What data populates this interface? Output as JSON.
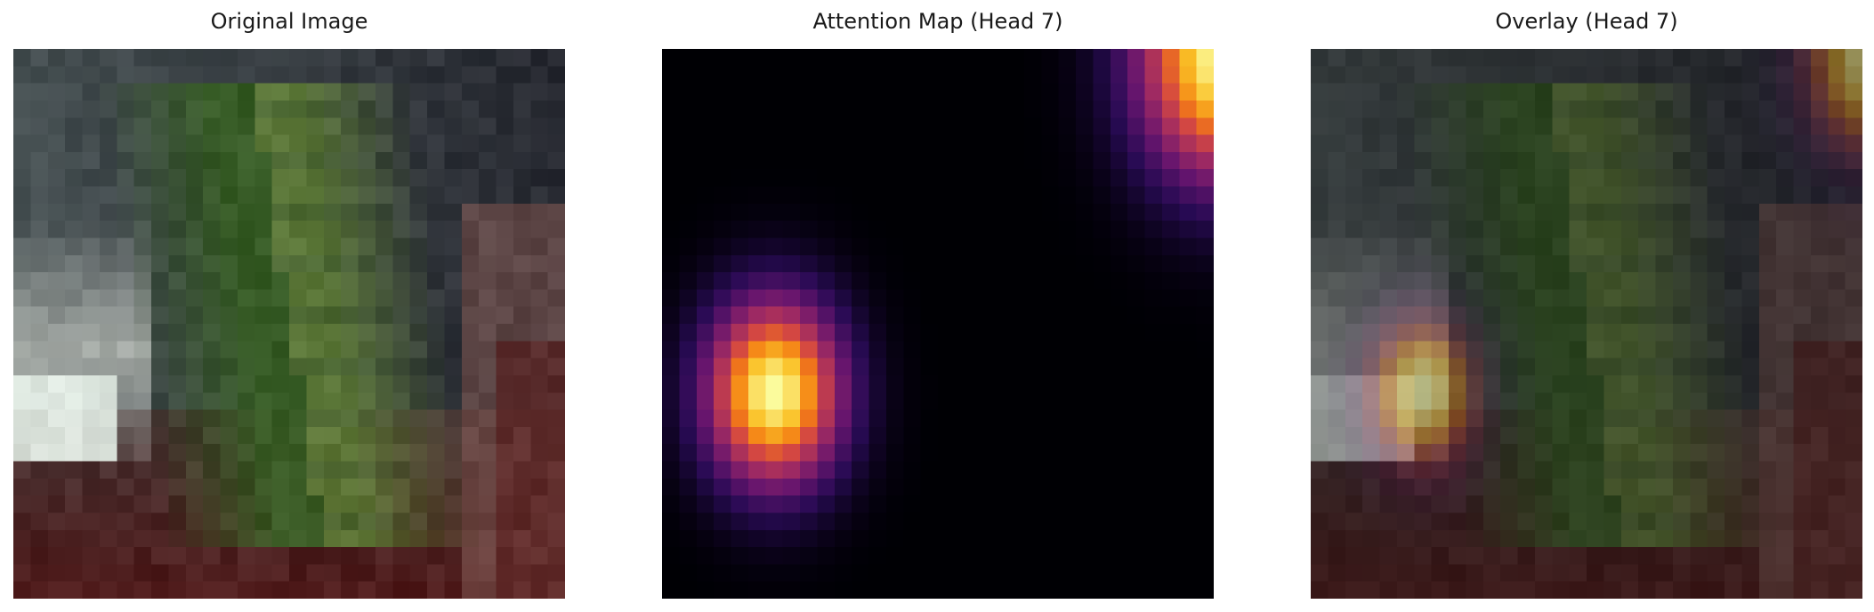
{
  "panels": [
    {
      "id": "original",
      "title": "Original Image"
    },
    {
      "id": "attention",
      "title": "Attention Map (Head 7)"
    },
    {
      "id": "overlay",
      "title": "Overlay (Head 7)"
    }
  ],
  "colors": {
    "background": "#ffffff",
    "title_text": "#1a1a1a",
    "attention_colormap": "inferno"
  }
}
